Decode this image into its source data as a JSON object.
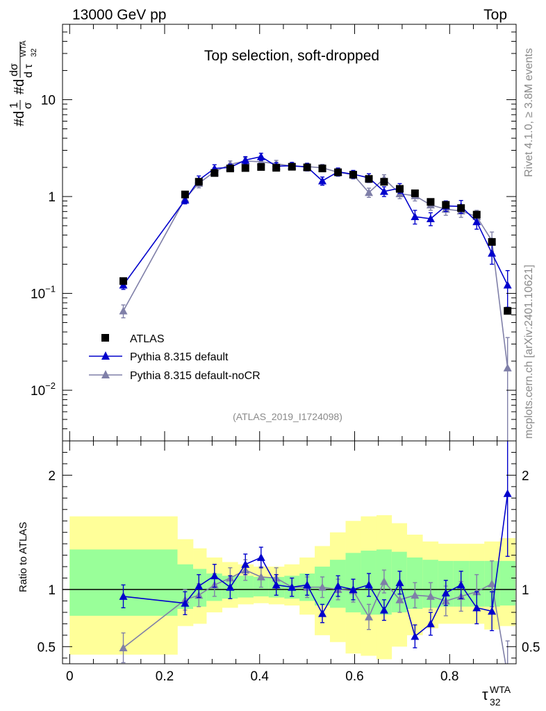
{
  "header": {
    "left": "13000 GeV pp",
    "right": "Top"
  },
  "side_labels": {
    "rivet": "Rivet 4.1.0, ≥ 3.8M events",
    "mcplots": "mcplots.cern.ch [arXiv:2401.10621]"
  },
  "chart_data": [
    {
      "type": "line",
      "title": "Top selection, soft-dropped",
      "watermark": "(ATLAS_2019_I1724098)",
      "ylabel": "#d1/σ #d dσ/d τ_32^WTA",
      "ylabel_parts": {
        "p1": "#d",
        "p2": "1",
        "p3": "σ",
        "p4": "#d",
        "p5": "dσ",
        "p6": "d τ",
        "sub": "32",
        "sup": "WTA"
      },
      "yscale": "log",
      "ylim": [
        0.003,
        60
      ],
      "xlim": [
        -0.015,
        0.94
      ],
      "yticks": [
        {
          "v": 0.01,
          "base": "10",
          "exp": "−2"
        },
        {
          "v": 0.1,
          "base": "10",
          "exp": "−1"
        },
        {
          "v": 1,
          "base": "1",
          "exp": ""
        },
        {
          "v": 10,
          "base": "10",
          "exp": ""
        }
      ],
      "legend_position": "center-left",
      "x": [
        0.113,
        0.243,
        0.272,
        0.305,
        0.338,
        0.37,
        0.403,
        0.435,
        0.468,
        0.5,
        0.532,
        0.565,
        0.597,
        0.63,
        0.662,
        0.695,
        0.727,
        0.76,
        0.792,
        0.824,
        0.857,
        0.889,
        0.922
      ],
      "series": [
        {
          "name": "ATLAS",
          "marker": "square",
          "color": "#000000",
          "values": [
            0.134,
            1.05,
            1.42,
            1.75,
            1.95,
            1.97,
            2.02,
            1.98,
            2.03,
            2.0,
            1.95,
            1.78,
            1.68,
            1.52,
            1.42,
            1.2,
            1.08,
            0.88,
            0.82,
            0.76,
            0.65,
            0.34,
            0.066
          ],
          "errors": []
        },
        {
          "name": "Pythia 8.315 default",
          "marker": "triangle",
          "color": "#0000cc",
          "values": [
            0.122,
            0.92,
            1.48,
            1.95,
            2.0,
            2.38,
            2.58,
            2.06,
            2.08,
            2.02,
            1.45,
            1.8,
            1.7,
            1.56,
            1.13,
            1.22,
            0.62,
            0.59,
            0.8,
            0.79,
            0.55,
            0.26,
            0.122
          ],
          "errors": [
            0.012,
            0.08,
            0.15,
            0.18,
            0.16,
            0.2,
            0.22,
            0.18,
            0.17,
            0.18,
            0.14,
            0.17,
            0.16,
            0.16,
            0.13,
            0.14,
            0.1,
            0.09,
            0.1,
            0.12,
            0.09,
            0.06,
            0.05
          ]
        },
        {
          "name": "Pythia 8.315 default-noCR",
          "marker": "triangle",
          "color": "#7f7fa8",
          "values": [
            0.066,
            0.95,
            1.37,
            1.8,
            2.15,
            2.33,
            2.28,
            2.18,
            2.06,
            2.04,
            1.98,
            1.78,
            1.68,
            1.1,
            1.53,
            1.07,
            1.02,
            0.82,
            0.74,
            0.71,
            0.62,
            0.35,
            0.017
          ],
          "errors": [
            0.01,
            0.08,
            0.14,
            0.17,
            0.18,
            0.2,
            0.2,
            0.18,
            0.17,
            0.17,
            0.17,
            0.16,
            0.16,
            0.12,
            0.15,
            0.12,
            0.12,
            0.1,
            0.1,
            0.1,
            0.1,
            0.08,
            0.018
          ]
        }
      ]
    },
    {
      "type": "line",
      "title": "",
      "ylabel": "Ratio to ATLAS",
      "xlabel": "τ",
      "xlabel_sub": "32",
      "xlabel_sup": "WTA",
      "ylim": [
        0.35,
        2.3
      ],
      "xlim": [
        -0.015,
        0.94
      ],
      "xticks": [
        0,
        0.2,
        0.4,
        0.6,
        0.8
      ],
      "xtick_labels": [
        "0",
        "0.2",
        "0.4",
        "0.6",
        "0.8"
      ],
      "yticks": [
        0.5,
        1,
        2
      ],
      "ytick_labels": [
        "0.5",
        "1",
        "2"
      ],
      "reference_line": 1.0,
      "bands": {
        "edges": [
          0.0,
          0.227,
          0.26,
          0.288,
          0.321,
          0.354,
          0.387,
          0.419,
          0.452,
          0.484,
          0.516,
          0.548,
          0.581,
          0.613,
          0.646,
          0.678,
          0.71,
          0.743,
          0.776,
          0.808,
          0.841,
          0.873,
          0.906,
          0.938
        ],
        "outer_color": "#ffff99",
        "inner_color": "#99ff99",
        "outer_low": [
          0.43,
          0.68,
          0.7,
          0.8,
          0.84,
          0.87,
          0.88,
          0.87,
          0.86,
          0.78,
          0.6,
          0.54,
          0.44,
          0.42,
          0.39,
          0.5,
          0.6,
          0.66,
          0.7,
          0.7,
          0.7,
          0.65,
          0.68
        ],
        "outer_high": [
          1.64,
          1.44,
          1.36,
          1.28,
          1.24,
          1.22,
          1.2,
          1.2,
          1.22,
          1.28,
          1.38,
          1.5,
          1.6,
          1.64,
          1.65,
          1.58,
          1.48,
          1.42,
          1.4,
          1.4,
          1.4,
          1.42,
          1.45
        ],
        "inner_low": [
          0.77,
          0.83,
          0.85,
          0.9,
          0.92,
          0.93,
          0.94,
          0.93,
          0.92,
          0.9,
          0.86,
          0.84,
          0.8,
          0.78,
          0.78,
          0.8,
          0.83,
          0.84,
          0.85,
          0.85,
          0.85,
          0.85,
          0.86
        ],
        "inner_high": [
          1.35,
          1.22,
          1.18,
          1.14,
          1.12,
          1.12,
          1.11,
          1.11,
          1.12,
          1.14,
          1.2,
          1.26,
          1.32,
          1.34,
          1.35,
          1.33,
          1.28,
          1.26,
          1.25,
          1.25,
          1.25,
          1.25,
          1.25
        ]
      },
      "x": [
        0.113,
        0.243,
        0.272,
        0.305,
        0.338,
        0.37,
        0.403,
        0.435,
        0.468,
        0.5,
        0.532,
        0.565,
        0.597,
        0.63,
        0.662,
        0.695,
        0.727,
        0.76,
        0.792,
        0.824,
        0.857,
        0.889,
        0.922
      ],
      "series": [
        {
          "name": "Pythia 8.315 default",
          "color": "#0000cc",
          "values": [
            0.94,
            0.88,
            1.03,
            1.12,
            1.02,
            1.22,
            1.28,
            1.04,
            1.02,
            1.04,
            0.79,
            1.03,
            1.0,
            1.04,
            0.82,
            1.06,
            0.59,
            0.7,
            0.97,
            1.04,
            0.84,
            0.81,
            1.84
          ],
          "errors": [
            0.1,
            0.1,
            0.1,
            0.1,
            0.1,
            0.09,
            0.09,
            0.09,
            0.08,
            0.09,
            0.08,
            0.09,
            0.09,
            0.1,
            0.09,
            0.1,
            0.1,
            0.1,
            0.11,
            0.12,
            0.14,
            0.17,
            0.55
          ]
        },
        {
          "name": "Pythia 8.315 default-noCR",
          "color": "#7f7fa8",
          "values": [
            0.49,
            0.91,
            0.95,
            1.04,
            1.1,
            1.17,
            1.11,
            1.1,
            1.02,
            1.02,
            1.02,
            1.0,
            0.99,
            0.76,
            1.07,
            0.91,
            0.95,
            0.94,
            0.9,
            0.94,
            0.98,
            1.05,
            0.25
          ],
          "errors": [
            0.13,
            0.09,
            0.1,
            0.1,
            0.09,
            0.09,
            0.09,
            0.09,
            0.08,
            0.09,
            0.09,
            0.09,
            0.1,
            0.11,
            0.1,
            0.11,
            0.11,
            0.12,
            0.13,
            0.13,
            0.15,
            0.2,
            0.3
          ]
        }
      ]
    }
  ]
}
